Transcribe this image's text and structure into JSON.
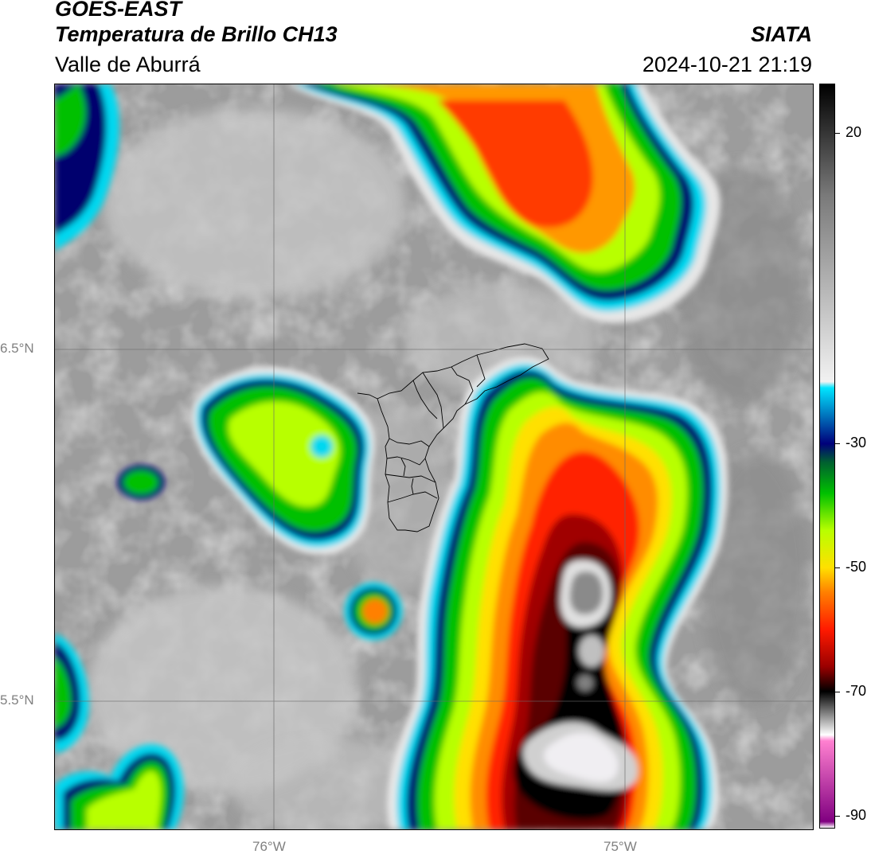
{
  "header": {
    "satellite": "GOES-EAST",
    "product": "Temperatura de Brillo CH13",
    "region": "Valle de Aburrá",
    "agency": "SIATA",
    "datetime": "2024-10-21 21:19"
  },
  "map": {
    "lat_labels": [
      {
        "value": 6.5,
        "text": "6.5°N"
      },
      {
        "value": 5.5,
        "text": "5.5°N"
      }
    ],
    "lon_labels": [
      {
        "value": -76,
        "text": "76°W"
      },
      {
        "value": -75,
        "text": "75°W"
      }
    ],
    "gridlines": true
  },
  "colorbar": {
    "range": [
      -92,
      28
    ],
    "ticks": [
      {
        "value": 20,
        "text": "20"
      },
      {
        "value": -30,
        "text": "-30"
      },
      {
        "value": -50,
        "text": "-50"
      },
      {
        "value": -70,
        "text": "-70"
      },
      {
        "value": -90,
        "text": "-90"
      }
    ],
    "stops": [
      {
        "t": 28,
        "color": "#000000"
      },
      {
        "t": 10,
        "color": "#7a7a7a"
      },
      {
        "t": -20,
        "color": "#f2f2f2"
      },
      {
        "t": -21,
        "color": "#00e5ff"
      },
      {
        "t": -30,
        "color": "#00007a"
      },
      {
        "t": -33,
        "color": "#006030"
      },
      {
        "t": -38,
        "color": "#00c000"
      },
      {
        "t": -44,
        "color": "#b8ff00"
      },
      {
        "t": -50,
        "color": "#ffe000"
      },
      {
        "t": -54,
        "color": "#ff8000"
      },
      {
        "t": -60,
        "color": "#ff1a00"
      },
      {
        "t": -66,
        "color": "#9a0000"
      },
      {
        "t": -70,
        "color": "#000000"
      },
      {
        "t": -77,
        "color": "#ffffff"
      },
      {
        "t": -78,
        "color": "#ff80d0"
      },
      {
        "t": -91,
        "color": "#800080"
      },
      {
        "t": -92,
        "color": "#ffffff"
      }
    ]
  }
}
